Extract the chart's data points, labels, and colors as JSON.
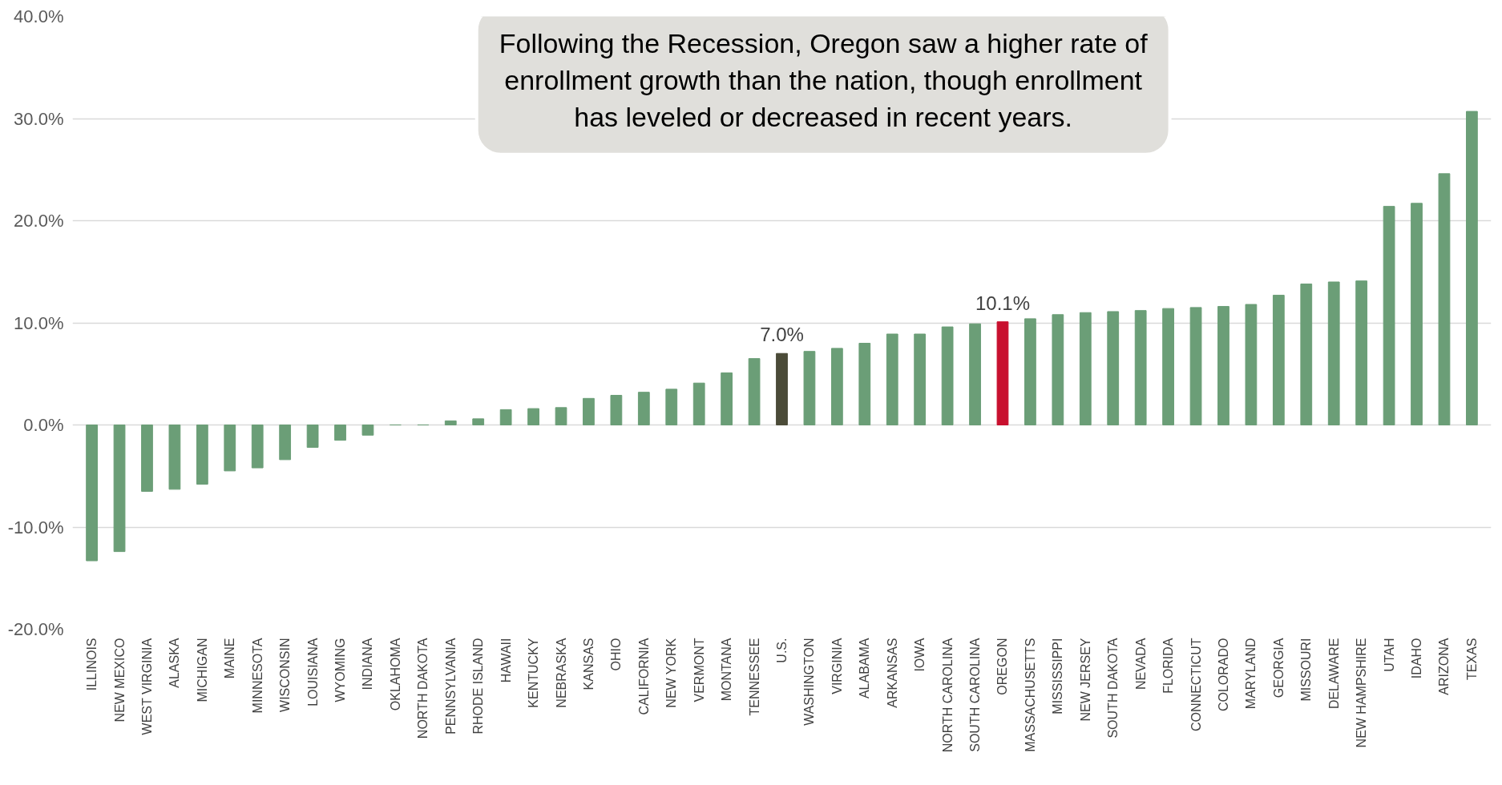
{
  "chart_data": {
    "type": "bar",
    "categories": [
      "ILLINOIS",
      "NEW MEXICO",
      "WEST VIRGINIA",
      "ALASKA",
      "MICHIGAN",
      "MAINE",
      "MINNESOTA",
      "WISCONSIN",
      "LOUISIANA",
      "WYOMING",
      "INDIANA",
      "OKLAHOMA",
      "NORTH DAKOTA",
      "PENNSYLVANIA",
      "RHODE ISLAND",
      "HAWAII",
      "KENTUCKY",
      "NEBRASKA",
      "KANSAS",
      "OHIO",
      "CALIFORNIA",
      "NEW YORK",
      "VERMONT",
      "MONTANA",
      "TENNESSEE",
      "U.S.",
      "WASHINGTON",
      "VIRGINIA",
      "ALABAMA",
      "ARKANSAS",
      "IOWA",
      "NORTH CAROLINA",
      "SOUTH CAROLINA",
      "OREGON",
      "MASSACHUSETTS",
      "MISSISSIPPI",
      "NEW JERSEY",
      "SOUTH DAKOTA",
      "NEVADA",
      "FLORIDA",
      "CONNECTICUT",
      "COLORADO",
      "MARYLAND",
      "GEORGIA",
      "MISSOURI",
      "DELAWARE",
      "NEW HAMPSHIRE",
      "UTAH",
      "IDAHO",
      "ARIZONA",
      "TEXAS"
    ],
    "values": [
      -13.3,
      -12.4,
      -6.5,
      -6.3,
      -5.8,
      -4.5,
      -4.2,
      -3.4,
      -2.2,
      -1.5,
      -1.0,
      0,
      0,
      0.4,
      0.6,
      1.5,
      1.6,
      1.7,
      2.6,
      2.9,
      3.2,
      3.5,
      4.1,
      5.1,
      6.5,
      7.0,
      7.2,
      7.5,
      8.0,
      8.9,
      8.9,
      9.6,
      9.9,
      10.1,
      10.4,
      10.8,
      11.0,
      11.1,
      11.2,
      11.4,
      11.5,
      11.6,
      11.8,
      12.7,
      13.8,
      14.0,
      14.1,
      21.4,
      21.7,
      24.6,
      30.7
    ],
    "colors": [
      "#6b9e77",
      "#6b9e77",
      "#6b9e77",
      "#6b9e77",
      "#6b9e77",
      "#6b9e77",
      "#6b9e77",
      "#6b9e77",
      "#6b9e77",
      "#6b9e77",
      "#6b9e77",
      "#6b9e77",
      "#6b9e77",
      "#6b9e77",
      "#6b9e77",
      "#6b9e77",
      "#6b9e77",
      "#6b9e77",
      "#6b9e77",
      "#6b9e77",
      "#6b9e77",
      "#6b9e77",
      "#6b9e77",
      "#6b9e77",
      "#6b9e77",
      "#4b4b38",
      "#6b9e77",
      "#6b9e77",
      "#6b9e77",
      "#6b9e77",
      "#6b9e77",
      "#6b9e77",
      "#6b9e77",
      "#c8102e",
      "#6b9e77",
      "#6b9e77",
      "#6b9e77",
      "#6b9e77",
      "#6b9e77",
      "#6b9e77",
      "#6b9e77",
      "#6b9e77",
      "#6b9e77",
      "#6b9e77",
      "#6b9e77",
      "#6b9e77",
      "#6b9e77",
      "#6b9e77",
      "#6b9e77",
      "#6b9e77",
      "#6b9e77"
    ],
    "value_labels": [
      null,
      null,
      null,
      null,
      null,
      null,
      null,
      null,
      null,
      null,
      null,
      null,
      null,
      null,
      null,
      null,
      null,
      null,
      null,
      null,
      null,
      null,
      null,
      null,
      null,
      "7.0%",
      null,
      null,
      null,
      null,
      null,
      null,
      null,
      "10.1%",
      null,
      null,
      null,
      null,
      null,
      null,
      null,
      null,
      null,
      null,
      null,
      null,
      null,
      null,
      null,
      null,
      null
    ],
    "ylim": [
      -20,
      40
    ],
    "yticks": [
      {
        "value": -20,
        "label": "-20.0%"
      },
      {
        "value": -10,
        "label": "-10.0%"
      },
      {
        "value": 0,
        "label": "0.0%"
      },
      {
        "value": 10,
        "label": "10.0%"
      },
      {
        "value": 20,
        "label": "20.0%"
      },
      {
        "value": 30,
        "label": "30.0%"
      },
      {
        "value": 40,
        "label": "40.0%"
      }
    ],
    "grid": "y",
    "annotations": [
      "Following the Recession, Oregon saw a higher rate of\nenrollment growth than the nation, though enrollment\nhas leveled or decreased in recent years."
    ]
  }
}
